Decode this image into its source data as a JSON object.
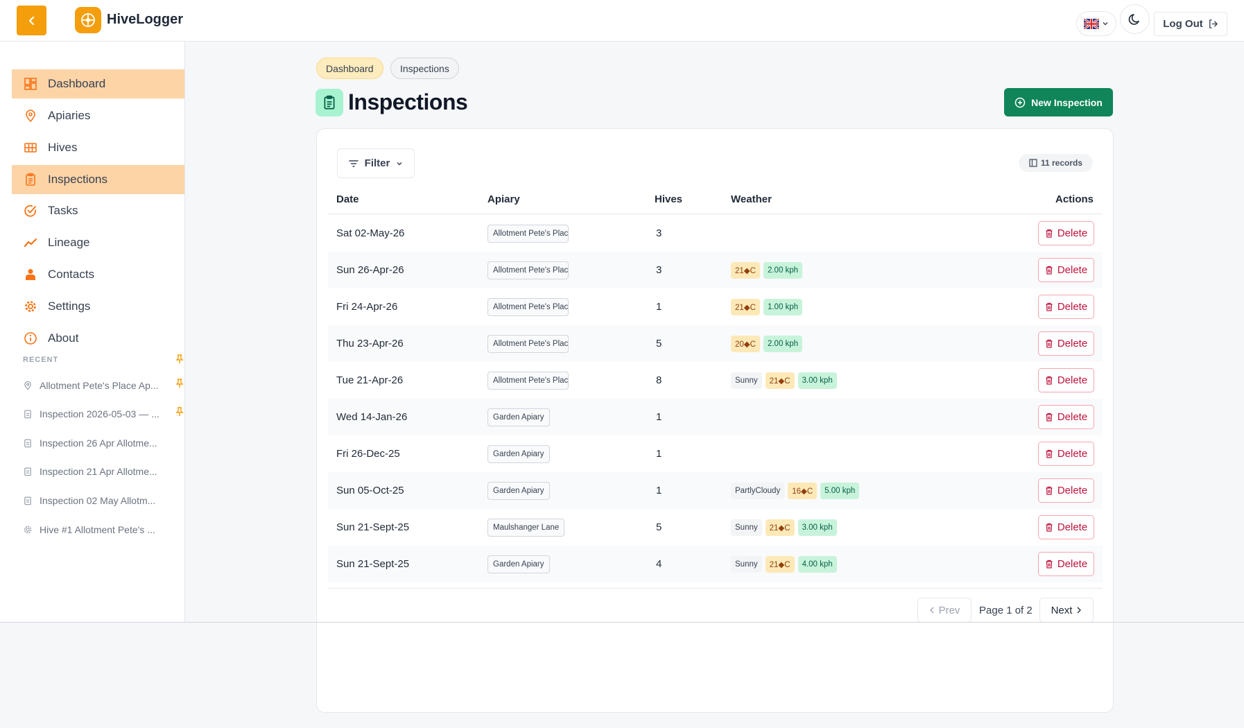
{
  "header": {
    "app_title": "HiveLogger",
    "logout_label": "Log Out",
    "back_icon": "chevron-left-icon",
    "logo_icon": "honeycomb-logo-icon",
    "language_flag": "uk-flag-icon",
    "theme_icon": "moon-icon",
    "accent": "#f59e0b"
  },
  "sidebar": {
    "items": [
      {
        "label": "Dashboard",
        "icon": "dashboard-icon",
        "active": true
      },
      {
        "label": "Apiaries",
        "icon": "map-pin-icon",
        "active": false
      },
      {
        "label": "Hives",
        "icon": "grid-icon",
        "active": false
      },
      {
        "label": "Inspections",
        "icon": "clipboard-icon",
        "active": true
      },
      {
        "label": "Tasks",
        "icon": "check-circle-icon",
        "active": false
      },
      {
        "label": "Lineage",
        "icon": "trend-icon",
        "active": false
      },
      {
        "label": "Contacts",
        "icon": "person-icon",
        "active": false
      },
      {
        "label": "Settings",
        "icon": "gear-icon",
        "active": false
      },
      {
        "label": "About",
        "icon": "info-icon",
        "active": false
      }
    ],
    "recent_heading": "RECENT",
    "recent": [
      {
        "label": "Allotment Pete's Place Ap...",
        "icon": "map-pin-icon",
        "pinned": true
      },
      {
        "label": "Inspection 2026-05-03 — ...",
        "icon": "clipboard-icon",
        "pinned": true
      },
      {
        "label": "Inspection 26 Apr Allotme...",
        "icon": "clipboard-icon",
        "pinned": false
      },
      {
        "label": "Inspection 21 Apr Allotme...",
        "icon": "clipboard-icon",
        "pinned": false
      },
      {
        "label": "Inspection 02 May Allotm...",
        "icon": "clipboard-icon",
        "pinned": false
      },
      {
        "label": "Hive #1 Allotment Pete's ...",
        "icon": "honeycomb-icon",
        "pinned": false
      }
    ]
  },
  "breadcrumbs": [
    "Dashboard",
    "Inspections"
  ],
  "page": {
    "title": "Inspections",
    "new_button": "New Inspection",
    "filter_label": "Filter",
    "records_label": "11 records"
  },
  "table": {
    "columns": [
      "Date",
      "Apiary",
      "Hives",
      "Weather",
      "Actions"
    ],
    "delete_label": "Delete",
    "rows": [
      {
        "date": "Sat 02-May-26",
        "apiary": "Allotment Pete's Place Apiary",
        "hives": "3",
        "condition": "",
        "temp": "",
        "wind": ""
      },
      {
        "date": "Sun 26-Apr-26",
        "apiary": "Allotment Pete's Place Apiary",
        "hives": "3",
        "condition": "",
        "temp": "21◆C",
        "wind": "2.00 kph"
      },
      {
        "date": "Fri 24-Apr-26",
        "apiary": "Allotment Pete's Place Apiary",
        "hives": "1",
        "condition": "",
        "temp": "21◆C",
        "wind": "1.00 kph"
      },
      {
        "date": "Thu 23-Apr-26",
        "apiary": "Allotment Pete's Place Apiary",
        "hives": "5",
        "condition": "",
        "temp": "20◆C",
        "wind": "2.00 kph"
      },
      {
        "date": "Tue 21-Apr-26",
        "apiary": "Allotment Pete's Place Apiary",
        "hives": "8",
        "condition": "Sunny",
        "temp": "21◆C",
        "wind": "3.00 kph"
      },
      {
        "date": "Wed 14-Jan-26",
        "apiary": "Garden Apiary",
        "hives": "1",
        "condition": "",
        "temp": "",
        "wind": ""
      },
      {
        "date": "Fri 26-Dec-25",
        "apiary": "Garden Apiary",
        "hives": "1",
        "condition": "",
        "temp": "",
        "wind": ""
      },
      {
        "date": "Sun 05-Oct-25",
        "apiary": "Garden Apiary",
        "hives": "1",
        "condition": "PartlyCloudy",
        "temp": "16◆C",
        "wind": "5.00 kph"
      },
      {
        "date": "Sun 21-Sept-25",
        "apiary": "Maulshanger Lane",
        "hives": "5",
        "condition": "Sunny",
        "temp": "21◆C",
        "wind": "3.00 kph"
      },
      {
        "date": "Sun 21-Sept-25",
        "apiary": "Garden Apiary",
        "hives": "4",
        "condition": "Sunny",
        "temp": "21◆C",
        "wind": "4.00 kph"
      }
    ]
  },
  "pagination": {
    "prev_label": "Prev",
    "page_label": "Page 1 of 2",
    "next_label": "Next"
  }
}
